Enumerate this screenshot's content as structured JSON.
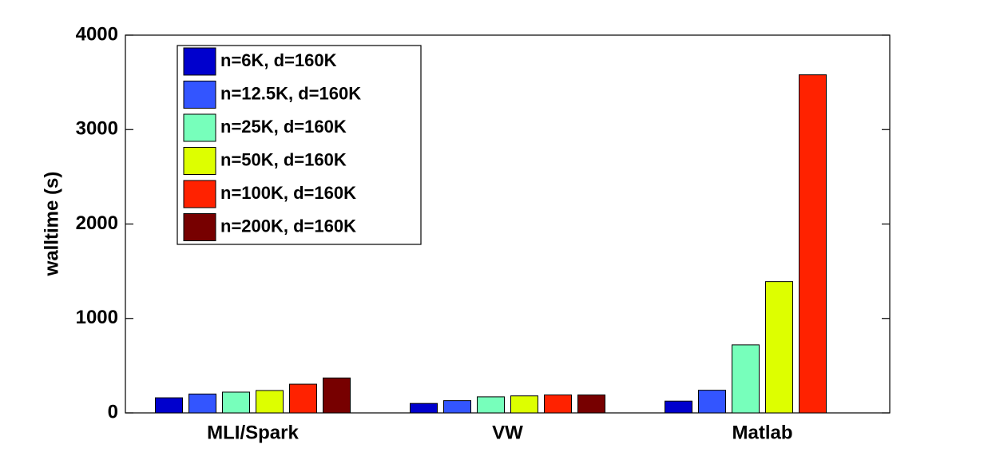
{
  "chart_data": {
    "type": "bar",
    "y_label": "walltime (s)",
    "categories": [
      "MLI/Spark",
      "VW",
      "Matlab"
    ],
    "series": [
      {
        "name": "n=6K, d=160K",
        "color": "#0000cd",
        "values": [
          160,
          100,
          125
        ]
      },
      {
        "name": "n=12.5K, d=160K",
        "color": "#3355ff",
        "values": [
          200,
          130,
          240
        ]
      },
      {
        "name": "n=25K, d=160K",
        "color": "#77ffbb",
        "values": [
          220,
          170,
          720
        ]
      },
      {
        "name": "n=50K, d=160K",
        "color": "#ddff00",
        "values": [
          237,
          180,
          1390
        ]
      },
      {
        "name": "n=100K, d=160K",
        "color": "#ff2200",
        "values": [
          304,
          190,
          3580
        ]
      },
      {
        "name": "n=200K, d=160K",
        "color": "#770000",
        "values": [
          370,
          190,
          null
        ]
      }
    ],
    "ylim": [
      0,
      4000
    ],
    "yticks": [
      0,
      1000,
      2000,
      3000,
      4000
    ],
    "legend": "upper left"
  }
}
